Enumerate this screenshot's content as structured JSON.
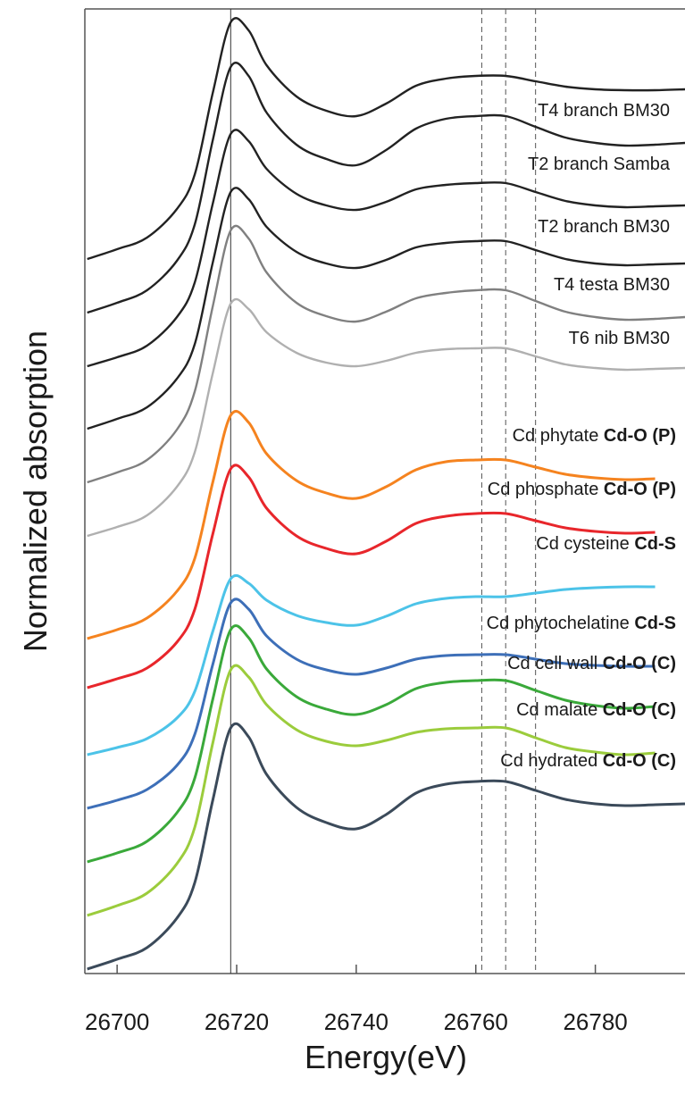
{
  "chart_data": {
    "type": "line",
    "xlabel": "Energy(eV)",
    "ylabel": "Normalized absorption",
    "x": [
      26695,
      26700,
      26705,
      26710,
      26713,
      26716,
      26719,
      26722,
      26725,
      26730,
      26735,
      26740,
      26745,
      26750,
      26755,
      26760,
      26765,
      26770,
      26775,
      26780,
      26785,
      26790,
      26795
    ],
    "xlim": [
      26694.6,
      26795
    ],
    "xticks": [
      26700,
      26720,
      26740,
      26760,
      26780
    ],
    "ylim": [
      0,
      10.8
    ],
    "vlines": [
      {
        "value": 26719,
        "style": "solid"
      },
      {
        "value": 26761,
        "style": "dashed"
      },
      {
        "value": 26765,
        "style": "dashed"
      },
      {
        "value": 26770,
        "style": "dashed"
      }
    ],
    "series": [
      {
        "name": "T4 branch BM30",
        "kind": "sample",
        "color": "#222222",
        "values": [
          8.0,
          8.11,
          8.24,
          8.56,
          8.95,
          9.86,
          10.65,
          10.56,
          10.17,
          9.82,
          9.66,
          9.6,
          9.74,
          9.94,
          10.02,
          10.05,
          10.05,
          9.99,
          9.93,
          9.9,
          9.89,
          9.89,
          9.9
        ]
      },
      {
        "name": "T2 branch Samba",
        "kind": "sample",
        "color": "#222222",
        "values": [
          7.4,
          7.51,
          7.65,
          7.98,
          8.39,
          9.33,
          10.15,
          10.05,
          9.64,
          9.28,
          9.12,
          9.05,
          9.22,
          9.46,
          9.57,
          9.6,
          9.6,
          9.48,
          9.36,
          9.3,
          9.27,
          9.28,
          9.3
        ]
      },
      {
        "name": "T2 branch BM30",
        "kind": "sample",
        "color": "#222222",
        "values": [
          6.8,
          6.9,
          7.03,
          7.35,
          7.74,
          8.62,
          9.4,
          9.32,
          9.01,
          8.73,
          8.6,
          8.55,
          8.64,
          8.78,
          8.83,
          8.85,
          8.85,
          8.75,
          8.65,
          8.6,
          8.58,
          8.59,
          8.6
        ]
      },
      {
        "name": "T4 testa BM30",
        "kind": "sample",
        "color": "#222222",
        "values": [
          6.1,
          6.21,
          6.34,
          6.66,
          7.05,
          7.96,
          8.75,
          8.67,
          8.36,
          8.08,
          7.95,
          7.9,
          7.99,
          8.13,
          8.18,
          8.2,
          8.2,
          8.1,
          8.0,
          7.95,
          7.93,
          7.94,
          7.95
        ]
      },
      {
        "name": "T6 nib BM30",
        "kind": "sample",
        "color": "#808080",
        "values": [
          5.5,
          5.61,
          5.75,
          6.09,
          6.52,
          7.47,
          8.32,
          8.23,
          7.85,
          7.51,
          7.36,
          7.3,
          7.41,
          7.56,
          7.62,
          7.65,
          7.65,
          7.53,
          7.41,
          7.35,
          7.32,
          7.33,
          7.35
        ]
      },
      {
        "name": null,
        "kind": "sample",
        "color": "#b0b0b0",
        "values": [
          4.9,
          5.0,
          5.13,
          5.45,
          5.84,
          6.72,
          7.5,
          7.44,
          7.18,
          6.95,
          6.84,
          6.8,
          6.86,
          6.95,
          6.99,
          7.0,
          7.0,
          6.91,
          6.82,
          6.78,
          6.76,
          6.77,
          6.78
        ]
      },
      {
        "name": "Cd phytate",
        "ligand": "Cd-O (P)",
        "kind": "reference",
        "color": "#f5831f",
        "values": [
          3.75,
          3.85,
          3.98,
          4.28,
          4.65,
          5.5,
          6.25,
          6.17,
          5.82,
          5.52,
          5.38,
          5.32,
          5.45,
          5.64,
          5.73,
          5.75,
          5.75,
          5.67,
          5.59,
          5.55,
          5.53,
          5.54,
          null
        ]
      },
      {
        "name": "Cd phosphate",
        "ligand": "Cd-O (P)",
        "kind": "reference",
        "color": "#e8262b",
        "values": [
          3.2,
          3.3,
          3.42,
          3.71,
          4.08,
          4.92,
          5.65,
          5.56,
          5.21,
          4.9,
          4.76,
          4.7,
          4.84,
          5.04,
          5.12,
          5.15,
          5.15,
          5.07,
          4.99,
          4.95,
          4.93,
          4.94,
          null
        ]
      },
      {
        "name": "Cd cysteine",
        "ligand": "Cd-S",
        "kind": "reference",
        "color": "#4cc3e8",
        "values": [
          2.45,
          2.53,
          2.63,
          2.86,
          3.16,
          3.83,
          4.42,
          4.37,
          4.18,
          4.01,
          3.93,
          3.9,
          4.0,
          4.14,
          4.2,
          4.22,
          4.22,
          4.26,
          4.3,
          4.32,
          4.33,
          4.33,
          null
        ]
      },
      {
        "name": "Cd phytochelatine",
        "ligand": "Cd-S",
        "kind": "reference",
        "color": "#3d6fb8",
        "values": [
          1.85,
          1.94,
          2.06,
          2.33,
          2.68,
          3.46,
          4.15,
          4.08,
          3.78,
          3.52,
          3.4,
          3.35,
          3.42,
          3.52,
          3.56,
          3.57,
          3.57,
          3.52,
          3.47,
          3.45,
          3.44,
          3.44,
          null
        ]
      },
      {
        "name": "Cd cell wall",
        "ligand": "Cd-O (C)",
        "kind": "reference",
        "color": "#3aa93a",
        "values": [
          1.25,
          1.35,
          1.48,
          1.8,
          2.19,
          3.07,
          3.85,
          3.76,
          3.41,
          3.1,
          2.96,
          2.9,
          3.01,
          3.19,
          3.26,
          3.28,
          3.28,
          3.17,
          3.06,
          3.0,
          2.97,
          2.99,
          null
        ]
      },
      {
        "name": "Cd malate",
        "ligand": "Cd-O (C)",
        "kind": "reference",
        "color": "#9bcc3c",
        "values": [
          0.65,
          0.76,
          0.9,
          1.23,
          1.64,
          2.58,
          3.4,
          3.32,
          3.01,
          2.73,
          2.6,
          2.55,
          2.61,
          2.7,
          2.74,
          2.75,
          2.75,
          2.64,
          2.53,
          2.48,
          2.45,
          2.47,
          null
        ]
      },
      {
        "name": "Cd hydrated",
        "ligand": "Cd-O (C)",
        "kind": "reference",
        "color": "#3b4a5a",
        "values": [
          0.05,
          0.16,
          0.29,
          0.62,
          1.02,
          1.94,
          2.75,
          2.65,
          2.23,
          1.86,
          1.69,
          1.62,
          1.78,
          2.02,
          2.12,
          2.15,
          2.15,
          2.05,
          1.95,
          1.9,
          1.88,
          1.89,
          1.9
        ]
      }
    ]
  }
}
